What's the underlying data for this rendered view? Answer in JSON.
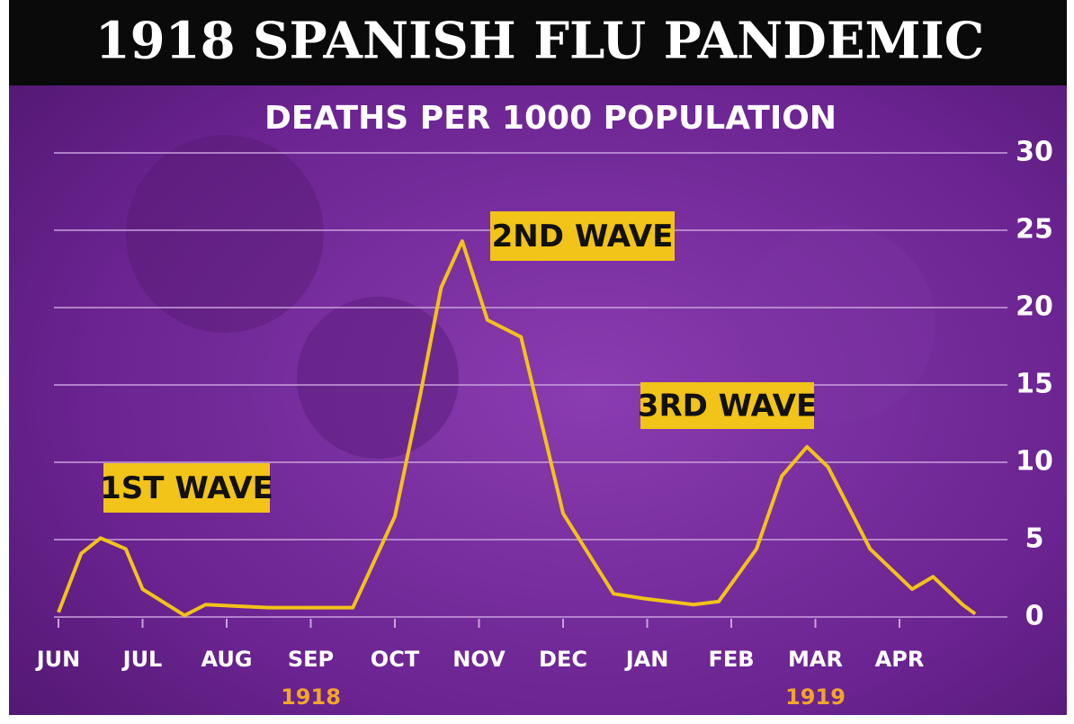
{
  "chart_data": {
    "type": "line",
    "title": "1918 SPANISH FLU PANDEMIC",
    "subtitle": "DEATHS PER 1000 POPULATION",
    "x": [
      0,
      0.27,
      0.5,
      0.8,
      1.0,
      1.5,
      1.75,
      2.5,
      3.5,
      4.0,
      4.3,
      4.55,
      4.8,
      5.1,
      5.5,
      6.0,
      6.6,
      6.95,
      7.55,
      7.85,
      8.3,
      8.6,
      8.9,
      9.15,
      9.65,
      10.15,
      10.4,
      10.75,
      10.9
    ],
    "series": [
      {
        "name": "Deaths per 1000",
        "color": "#f2c318",
        "values": [
          0.3,
          4.1,
          5.1,
          4.4,
          1.8,
          0.1,
          0.8,
          0.6,
          0.6,
          6.5,
          14.3,
          21.3,
          24.3,
          19.2,
          18.1,
          6.7,
          1.5,
          1.2,
          0.8,
          1.0,
          4.4,
          9.1,
          11.0,
          9.7,
          4.4,
          1.8,
          2.6,
          0.8,
          0.2
        ]
      }
    ],
    "xlim": [
      0,
      11
    ],
    "xticks": [
      {
        "value": 0,
        "label": "JUN"
      },
      {
        "value": 1,
        "label": "JUL"
      },
      {
        "value": 2,
        "label": "AUG"
      },
      {
        "value": 3,
        "label": "SEP"
      },
      {
        "value": 4,
        "label": "OCT"
      },
      {
        "value": 5,
        "label": "NOV"
      },
      {
        "value": 6,
        "label": "DEC"
      },
      {
        "value": 7,
        "label": "JAN"
      },
      {
        "value": 8,
        "label": "FEB"
      },
      {
        "value": 9,
        "label": "MAR"
      },
      {
        "value": 10,
        "label": "APR"
      }
    ],
    "year_labels": [
      "1918",
      "1919"
    ],
    "ylim": [
      0,
      30
    ],
    "yticks": [
      0,
      5,
      10,
      15,
      20,
      25,
      30
    ],
    "grid": true,
    "annotations": [
      "1ST WAVE",
      "2ND WAVE",
      "3RD WAVE"
    ]
  }
}
